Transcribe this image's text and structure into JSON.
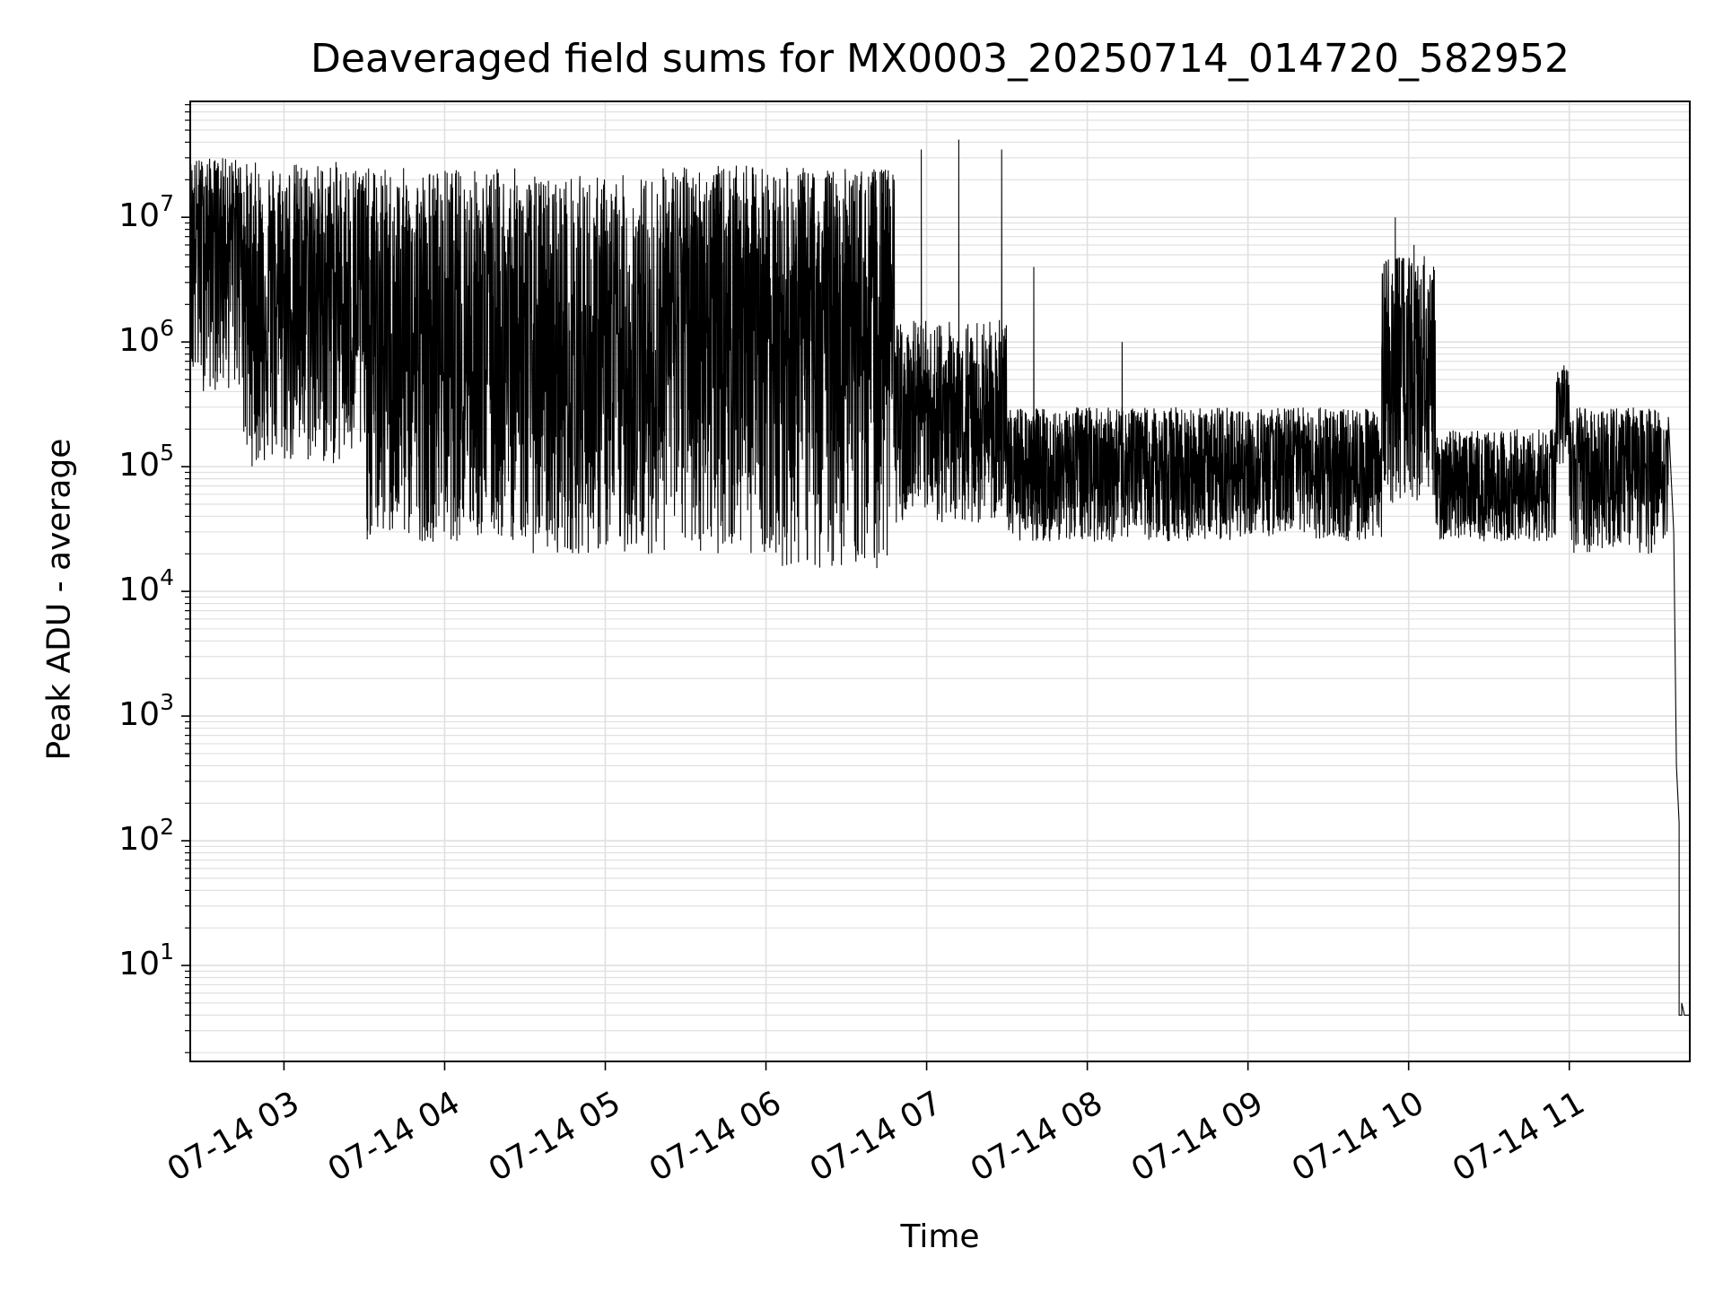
{
  "chart_data": {
    "type": "line",
    "title": "Deaveraged field sums for MX0003_20250714_014720_582952",
    "xlabel": "Time",
    "ylabel": "Peak ADU - average",
    "yscale": "log",
    "grid": true,
    "legend": "none",
    "line_color": "#000000",
    "grid_color": "#e0e0e0",
    "xlim": [
      "07-14 02:25",
      "07-14 11:45"
    ],
    "ylim": [
      1.7,
      85000000
    ],
    "x_ticks": [
      "07-14 03",
      "07-14 04",
      "07-14 05",
      "07-14 06",
      "07-14 07",
      "07-14 08",
      "07-14 09",
      "07-14 10",
      "07-14 11"
    ],
    "y_ticks": [
      {
        "value": 10,
        "base": "10",
        "exp": "1"
      },
      {
        "value": 100,
        "base": "10",
        "exp": "2"
      },
      {
        "value": 1000,
        "base": "10",
        "exp": "3"
      },
      {
        "value": 10000,
        "base": "10",
        "exp": "4"
      },
      {
        "value": 100000,
        "base": "10",
        "exp": "5"
      },
      {
        "value": 1000000,
        "base": "10",
        "exp": "6"
      },
      {
        "value": 10000000,
        "base": "10",
        "exp": "7"
      }
    ],
    "series": [
      {
        "style": "noisy envelope",
        "samples_per_segment": 60,
        "segments": [
          {
            "start": "07-14 02:25",
            "end": "07-14 02:45",
            "low": 400000,
            "high": 30000000,
            "median": 8000000
          },
          {
            "start": "07-14 02:45",
            "end": "07-14 03:30",
            "low": 100000,
            "high": 28000000,
            "median": 2000000
          },
          {
            "start": "07-14 03:30",
            "end": "07-14 04:30",
            "low": 25000,
            "high": 25000000,
            "median": 700000
          },
          {
            "start": "07-14 04:30",
            "end": "07-14 05:20",
            "low": 20000,
            "high": 22000000,
            "median": 400000
          },
          {
            "start": "07-14 05:20",
            "end": "07-14 06:00",
            "low": 20000,
            "high": 26000000,
            "median": 1500000
          },
          {
            "start": "07-14 06:00",
            "end": "07-14 06:48",
            "low": 15000,
            "high": 25000000,
            "median": 1200000
          },
          {
            "start": "07-14 06:48",
            "end": "07-14 07:30",
            "low": 35000,
            "high": 1500000,
            "median": 200000
          },
          {
            "start": "07-14 07:30",
            "end": "07-14 09:50",
            "low": 25000,
            "high": 300000,
            "median": 90000
          },
          {
            "start": "07-14 09:50",
            "end": "07-14 10:10",
            "low": 50000,
            "high": 5000000,
            "median": 400000
          },
          {
            "start": "07-14 10:10",
            "end": "07-14 10:55",
            "low": 25000,
            "high": 200000,
            "median": 60000
          },
          {
            "start": "07-14 10:55",
            "end": "07-14 11:00",
            "low": 100000,
            "high": 600000,
            "median": 300000
          },
          {
            "start": "07-14 11:00",
            "end": "07-14 11:37",
            "low": 20000,
            "high": 300000,
            "median": 100000
          }
        ],
        "spikes": [
          {
            "x": "07-14 06:58",
            "y": 35000000
          },
          {
            "x": "07-14 07:12",
            "y": 42000000
          },
          {
            "x": "07-14 07:28",
            "y": 35000000
          },
          {
            "x": "07-14 07:40",
            "y": 4000000
          },
          {
            "x": "07-14 08:13",
            "y": 1000000
          },
          {
            "x": "07-14 09:55",
            "y": 10000000
          },
          {
            "x": "07-14 10:02",
            "y": 6000000
          },
          {
            "x": "07-14 10:58",
            "y": 650000
          }
        ],
        "tail": [
          {
            "x": "07-14 11:37",
            "y": 250000
          },
          {
            "x": "07-14 11:39",
            "y": 30000
          },
          {
            "x": "07-14 11:40",
            "y": 400
          },
          {
            "x": "07-14 11:41",
            "y": 140
          },
          {
            "x": "07-14 11:41",
            "y": 4
          },
          {
            "x": "07-14 11:42",
            "y": 4
          },
          {
            "x": "07-14 11:42",
            "y": 5
          },
          {
            "x": "07-14 11:43",
            "y": 4
          },
          {
            "x": "07-14 11:45",
            "y": 4
          }
        ]
      }
    ]
  }
}
